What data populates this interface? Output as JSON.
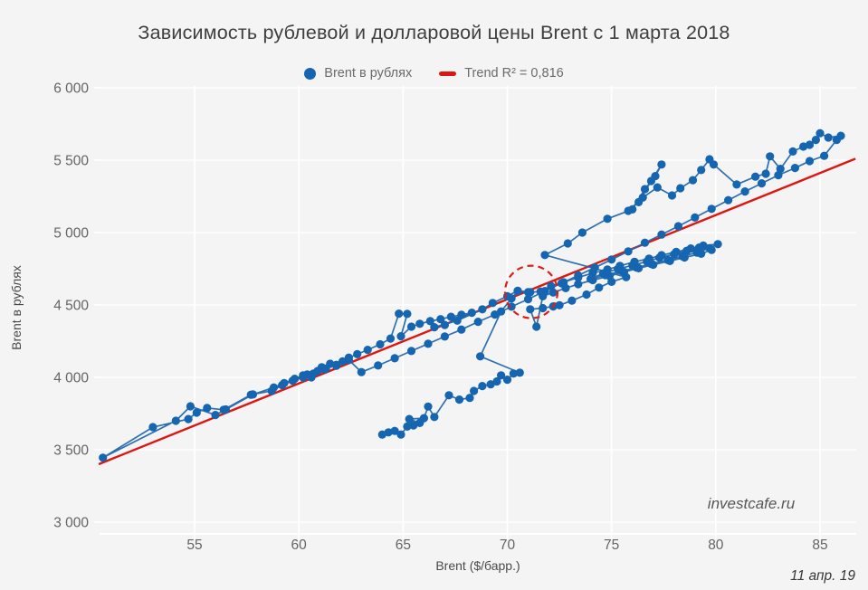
{
  "title": "Зависимость рублевой и долларовой цены Brent с 1 марта 2018",
  "legend": {
    "series_label": "Brent в рублях",
    "trend_label": "Trend R² = 0,816"
  },
  "axes": {
    "x_label": "Brent ($/барр.)",
    "y_label": "Brent в рублях",
    "x_ticks": [
      55,
      60,
      65,
      70,
      75,
      80,
      85
    ],
    "y_ticks": [
      3000,
      3500,
      4000,
      4500,
      5000,
      5500,
      6000
    ]
  },
  "watermark": "investcafe.ru",
  "date_label": "11 апр. 19",
  "colors": {
    "background": "#f4f4f4",
    "gridline": "#ffffff",
    "point": "#1565b0",
    "line": "#2268ad",
    "trend": "#dc1712",
    "annotation": "#d8201a",
    "tick_text": "#646464"
  },
  "chart_data": {
    "type": "scatter",
    "title": "Зависимость рублевой и долларовой цены Brent с 1 марта 2018",
    "xlabel": "Brent ($/барр.)",
    "ylabel": "Brent в рублях",
    "xlim": [
      50.4,
      86.7
    ],
    "ylim": [
      2920,
      6010
    ],
    "grid": true,
    "legend_position": "top-center",
    "trend_line": {
      "label": "Trend R² = 0,816",
      "r2": "0,816",
      "endpoints": [
        [
          50.4,
          3400
        ],
        [
          86.7,
          5510
        ]
      ]
    },
    "annotation_circle": {
      "x": 71.15,
      "y": 4590,
      "radius_px": 29,
      "style": "dashed"
    },
    "series": [
      {
        "name": "Brent в рублях",
        "connected": true,
        "points": [
          [
            64.0,
            3605
          ],
          [
            64.3,
            3620
          ],
          [
            64.6,
            3630
          ],
          [
            64.9,
            3605
          ],
          [
            65.2,
            3660
          ],
          [
            65.5,
            3668
          ],
          [
            65.8,
            3685
          ],
          [
            65.3,
            3712
          ],
          [
            66.0,
            3718
          ],
          [
            66.2,
            3798
          ],
          [
            66.5,
            3726
          ],
          [
            67.2,
            3876
          ],
          [
            67.7,
            3846
          ],
          [
            68.2,
            3858
          ],
          [
            68.4,
            3906
          ],
          [
            68.8,
            3940
          ],
          [
            69.2,
            3952
          ],
          [
            69.5,
            3972
          ],
          [
            69.7,
            4014
          ],
          [
            70.0,
            3984
          ],
          [
            70.3,
            4026
          ],
          [
            70.6,
            4032
          ],
          [
            68.7,
            4145
          ],
          [
            69.7,
            4455
          ],
          [
            70.2,
            4545
          ],
          [
            70.5,
            4596
          ],
          [
            71.0,
            4588
          ],
          [
            71.6,
            4592
          ],
          [
            72.1,
            4630
          ],
          [
            72.7,
            4656
          ],
          [
            73.4,
            4690
          ],
          [
            74.1,
            4720
          ],
          [
            74.8,
            4745
          ],
          [
            75.4,
            4770
          ],
          [
            76.1,
            4798
          ],
          [
            76.8,
            4820
          ],
          [
            77.4,
            4844
          ],
          [
            78.1,
            4866
          ],
          [
            78.8,
            4890
          ],
          [
            79.4,
            4910
          ],
          [
            80.1,
            4920
          ],
          [
            79.7,
            4892
          ],
          [
            79.1,
            4862
          ],
          [
            78.4,
            4836
          ],
          [
            77.7,
            4810
          ],
          [
            76.9,
            4784
          ],
          [
            76.2,
            4758
          ],
          [
            75.5,
            4734
          ],
          [
            74.7,
            4706
          ],
          [
            74.0,
            4680
          ],
          [
            74.6,
            4718
          ],
          [
            75.3,
            4748
          ],
          [
            76.0,
            4774
          ],
          [
            76.7,
            4800
          ],
          [
            77.3,
            4826
          ],
          [
            78.0,
            4850
          ],
          [
            78.6,
            4874
          ],
          [
            79.2,
            4896
          ],
          [
            79.8,
            4880
          ],
          [
            79.3,
            4854
          ],
          [
            78.5,
            4828
          ],
          [
            77.8,
            4804
          ],
          [
            77.0,
            4778
          ],
          [
            76.3,
            4754
          ],
          [
            75.6,
            4728
          ],
          [
            74.9,
            4700
          ],
          [
            74.1,
            4672
          ],
          [
            73.4,
            4644
          ],
          [
            72.8,
            4616
          ],
          [
            72.2,
            4586
          ],
          [
            71.7,
            4560
          ],
          [
            71.4,
            4350
          ],
          [
            71.1,
            4470
          ],
          [
            71.7,
            4478
          ],
          [
            72.2,
            4490
          ],
          [
            72.5,
            4498
          ],
          [
            73.1,
            4530
          ],
          [
            73.8,
            4572
          ],
          [
            74.4,
            4620
          ],
          [
            75.0,
            4660
          ],
          [
            75.7,
            4692
          ],
          [
            71.8,
            4845
          ],
          [
            72.9,
            4925
          ],
          [
            73.6,
            5000
          ],
          [
            74.8,
            5095
          ],
          [
            76.0,
            5160
          ],
          [
            76.6,
            5300
          ],
          [
            77.1,
            5390
          ],
          [
            77.4,
            5470
          ],
          [
            76.9,
            5356
          ],
          [
            76.3,
            5210
          ],
          [
            75.8,
            5150
          ],
          [
            76.5,
            5242
          ],
          [
            77.2,
            5312
          ],
          [
            77.9,
            5256
          ],
          [
            78.3,
            5306
          ],
          [
            78.9,
            5362
          ],
          [
            79.3,
            5432
          ],
          [
            79.7,
            5506
          ],
          [
            79.9,
            5470
          ],
          [
            81.0,
            5332
          ],
          [
            81.9,
            5386
          ],
          [
            82.4,
            5406
          ],
          [
            82.6,
            5526
          ],
          [
            83.1,
            5440
          ],
          [
            83.7,
            5560
          ],
          [
            84.2,
            5594
          ],
          [
            84.5,
            5606
          ],
          [
            84.8,
            5640
          ],
          [
            85.0,
            5686
          ],
          [
            85.4,
            5656
          ],
          [
            86.0,
            5668
          ],
          [
            85.8,
            5640
          ],
          [
            85.2,
            5530
          ],
          [
            84.5,
            5494
          ],
          [
            83.8,
            5446
          ],
          [
            83.0,
            5396
          ],
          [
            82.2,
            5340
          ],
          [
            81.4,
            5284
          ],
          [
            80.6,
            5224
          ],
          [
            79.8,
            5164
          ],
          [
            79.0,
            5104
          ],
          [
            78.2,
            5044
          ],
          [
            77.4,
            4986
          ],
          [
            76.6,
            4930
          ],
          [
            75.8,
            4870
          ],
          [
            75.0,
            4814
          ],
          [
            74.2,
            4758
          ],
          [
            73.4,
            4704
          ],
          [
            72.6,
            4650
          ],
          [
            71.8,
            4596
          ],
          [
            71.0,
            4540
          ],
          [
            70.2,
            4488
          ],
          [
            69.4,
            4434
          ],
          [
            68.6,
            4384
          ],
          [
            67.8,
            4330
          ],
          [
            67.0,
            4282
          ],
          [
            66.2,
            4232
          ],
          [
            65.4,
            4182
          ],
          [
            64.6,
            4132
          ],
          [
            63.8,
            4082
          ],
          [
            63.0,
            4036
          ],
          [
            62.4,
            4120
          ],
          [
            61.8,
            4086
          ],
          [
            61.2,
            4056
          ],
          [
            60.7,
            4026
          ],
          [
            60.2,
            4000
          ],
          [
            59.7,
            3976
          ],
          [
            59.2,
            3946
          ],
          [
            58.7,
            3906
          ],
          [
            57.7,
            3880
          ],
          [
            56.4,
            3776
          ],
          [
            55.6,
            3788
          ],
          [
            55.1,
            3756
          ],
          [
            54.7,
            3712
          ],
          [
            53.0,
            3656
          ],
          [
            50.6,
            3445
          ],
          [
            54.1,
            3700
          ],
          [
            54.8,
            3800
          ],
          [
            56.0,
            3740
          ],
          [
            56.5,
            3778
          ],
          [
            57.8,
            3882
          ],
          [
            58.8,
            3930
          ],
          [
            59.3,
            3960
          ],
          [
            59.8,
            3990
          ],
          [
            60.2,
            4014
          ],
          [
            60.4,
            4020
          ],
          [
            60.6,
            4000
          ],
          [
            60.9,
            4044
          ],
          [
            61.1,
            4070
          ],
          [
            61.3,
            4060
          ],
          [
            61.5,
            4094
          ],
          [
            61.8,
            4080
          ],
          [
            62.1,
            4110
          ],
          [
            62.4,
            4136
          ],
          [
            62.8,
            4160
          ],
          [
            63.3,
            4190
          ],
          [
            63.9,
            4228
          ],
          [
            64.4,
            4268
          ],
          [
            64.8,
            4440
          ],
          [
            65.2,
            4438
          ],
          [
            64.9,
            4284
          ],
          [
            65.4,
            4350
          ],
          [
            65.8,
            4370
          ],
          [
            66.3,
            4388
          ],
          [
            66.8,
            4402
          ],
          [
            67.3,
            4418
          ],
          [
            67.8,
            4432
          ],
          [
            68.3,
            4446
          ],
          [
            67.0,
            4362
          ],
          [
            66.5,
            4346
          ],
          [
            67.6,
            4392
          ],
          [
            68.8,
            4470
          ],
          [
            69.3,
            4514
          ],
          [
            70.0,
            4560
          ],
          [
            70.5,
            4598
          ],
          [
            71.1,
            4588
          ],
          [
            71.6,
            4592
          ]
        ]
      }
    ]
  }
}
